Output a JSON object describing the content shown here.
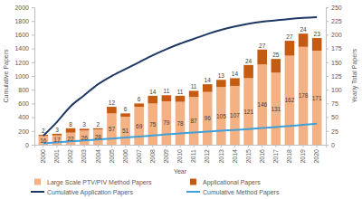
{
  "chart_data": {
    "type": "bar",
    "x_label": "Year",
    "y_label": "Cumulative Papers",
    "y2_label": "Yearly Total Papers",
    "categories": [
      "2000",
      "2001",
      "2002",
      "2003",
      "2004",
      "2005",
      "2006",
      "2007",
      "2008",
      "2009",
      "2010",
      "2011",
      "2012",
      "2013",
      "2014",
      "2015",
      "2016",
      "2017",
      "2018",
      "2019",
      "2020"
    ],
    "ylim": [
      0,
      2000
    ],
    "yticks": [
      0,
      200,
      400,
      600,
      800,
      1000,
      1200,
      1400,
      1600,
      1800,
      2000
    ],
    "y2lim": [
      0,
      250
    ],
    "y2ticks": [
      0,
      25,
      50,
      75,
      100,
      125,
      150,
      175,
      200,
      225,
      250
    ],
    "stacked": true,
    "data_labels": true,
    "legend": "bottom",
    "grid": false,
    "series": [
      {
        "name": "Large Scale PTV/PIV Method Papers",
        "type": "bar",
        "axis": "y2",
        "color": "#f4b183",
        "values": [
          16,
          17,
          22,
          26,
          28,
          57,
          51,
          69,
          75,
          79,
          78,
          87,
          96,
          105,
          107,
          121,
          146,
          131,
          162,
          178,
          171
        ]
      },
      {
        "name": "Applicational Papers",
        "type": "bar",
        "axis": "y2",
        "color": "#c55a11",
        "values": [
          2,
          3,
          8,
          3,
          2,
          12,
          6,
          6,
          14,
          11,
          11,
          11,
          14,
          13,
          14,
          24,
          27,
          25,
          27,
          24,
          23
        ]
      },
      {
        "name": "Cumulative Application Papers",
        "type": "line",
        "color": "#1f3864",
        "values": [
          130,
          330,
          560,
          720,
          880,
          1000,
          1100,
          1200,
          1300,
          1390,
          1470,
          1540,
          1610,
          1670,
          1720,
          1760,
          1790,
          1810,
          1830,
          1845,
          1855
        ]
      },
      {
        "name": "Cumulative Method Papers",
        "type": "line",
        "color": "#41a0d8",
        "values": [
          20,
          35,
          50,
          62,
          75,
          90,
          105,
          120,
          135,
          150,
          165,
          178,
          190,
          203,
          215,
          228,
          242,
          257,
          272,
          290,
          305
        ]
      }
    ]
  }
}
